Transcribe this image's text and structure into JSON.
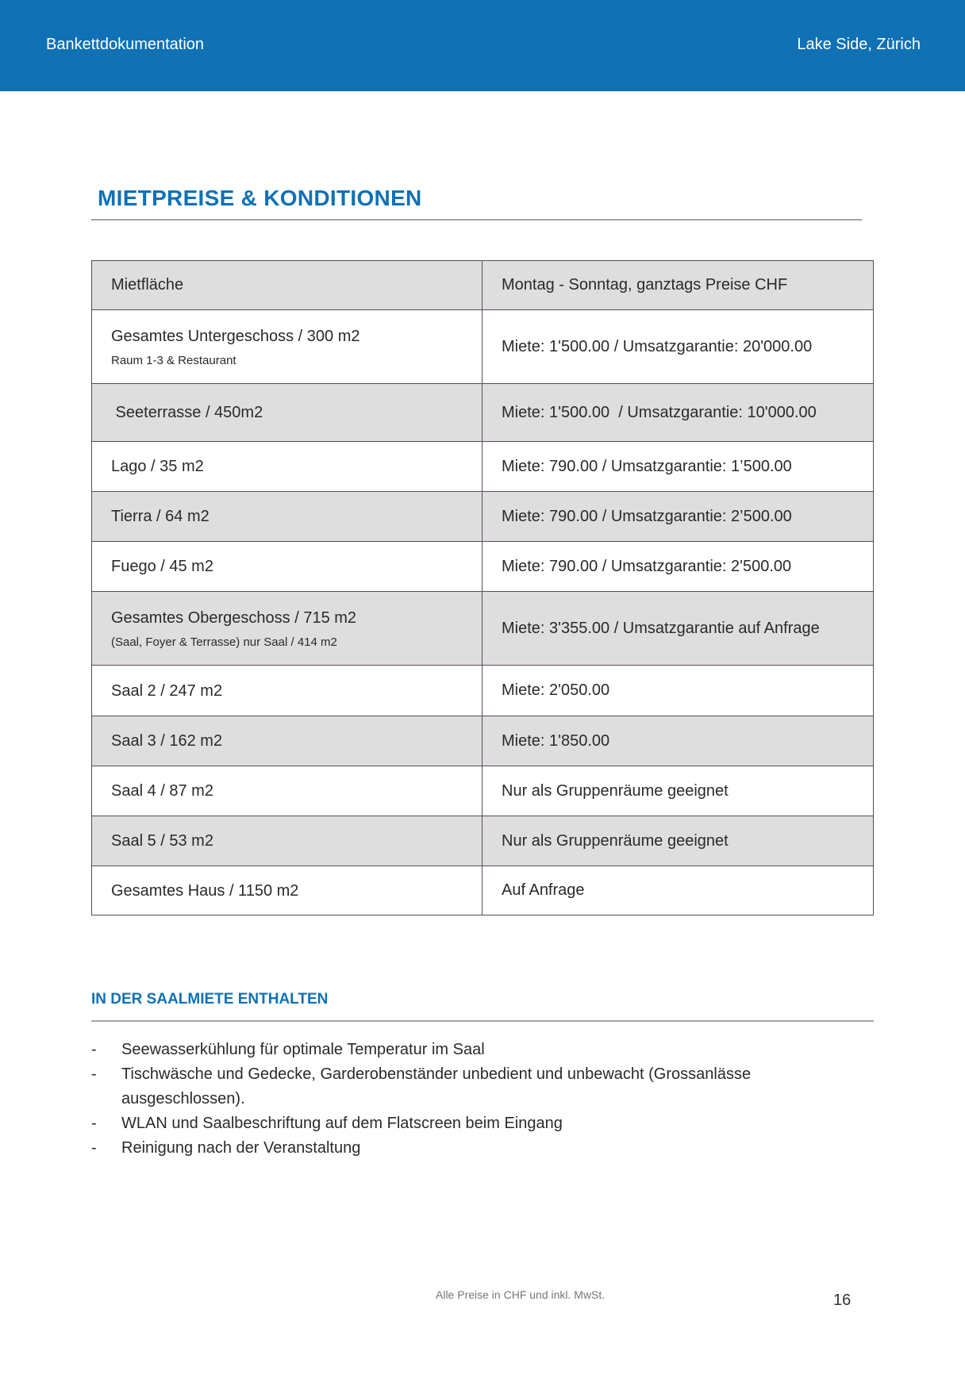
{
  "header": {
    "left": "Bankettdokumentation",
    "right": "Lake Side, Zürich"
  },
  "title": "MIETPREISE & KONDITIONEN",
  "table": {
    "headers": [
      "Mietfläche",
      "Montag  - Sonntag,  ganztags  Preise  CHF"
    ],
    "rows": [
      {
        "area": "Gesamtes Untergeschoss / 300 m2",
        "sub": "Raum 1-3 & Restaurant",
        "price": "Miete: 1'500.00 / Umsatzgarantie: 20'000.00"
      },
      {
        "area": " Seeterrasse / 450m2",
        "sub": "",
        "price": "Miete: 1'500.00  / Umsatzgarantie: 10'000.00"
      },
      {
        "area": "Lago / 35 m2",
        "sub": "",
        "price": "Miete: 790.00 / Umsatzgarantie: 1’500.00"
      },
      {
        "area": "Tierra / 64 m2",
        "sub": "",
        "price": "Miete: 790.00 / Umsatzgarantie: 2’500.00"
      },
      {
        "area": "Fuego / 45 m2",
        "sub": "",
        "price": "Miete: 790.00 / Umsatzgarantie: 2'500.00"
      },
      {
        "area": "Gesamtes Obergeschoss / 715 m2",
        "sub": "(Saal, Foyer & Terrasse) nur Saal / 414 m2",
        "price": "Miete: 3'355.00 / Umsatzgarantie auf Anfrage"
      },
      {
        "area": "Saal 2 / 247 m2",
        "sub": "",
        "price": "Miete: 2'050.00"
      },
      {
        "area": "Saal 3 / 162 m2",
        "sub": "",
        "price": "Miete: 1'850.00"
      },
      {
        "area": "Saal 4 / 87 m2",
        "sub": "",
        "price": "Nur als Gruppenräume geeignet"
      },
      {
        "area": "Saal 5 / 53 m2",
        "sub": "",
        "price": "Nur als Gruppenräume geeignet"
      },
      {
        "area": "Gesamtes Haus / 1150 m2",
        "sub": "",
        "price": "Auf Anfrage"
      }
    ]
  },
  "included": {
    "heading": "IN DER SAALMIETE ENTHALTEN",
    "bullet": "-",
    "items": [
      "Seewasserkühlung für optimale Temperatur im Saal",
      "Tischwäsche und Gedecke, Garderobenständer unbedient und unbewacht (Grossanlässe ausgeschlossen).",
      "WLAN und Saalbeschriftung auf dem Flatscreen beim Eingang",
      "Reinigung nach der Veranstaltung"
    ]
  },
  "footer": {
    "note": "Alle Preise in CHF und inkl. MwSt.",
    "page": "16"
  },
  "colors": {
    "brand": "#1071b5",
    "row_shade": "#dedede",
    "border": "#5c4a5c"
  }
}
